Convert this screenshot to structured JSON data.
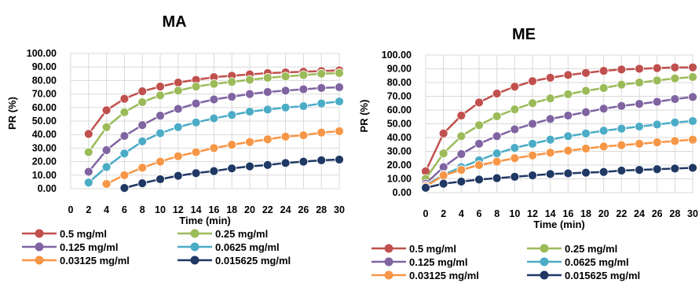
{
  "chart_data": [
    {
      "type": "line",
      "title": "MA",
      "xlabel": "Time (min)",
      "ylabel": "PR (%)",
      "xlim": [
        0,
        30
      ],
      "ylim": [
        0,
        100
      ],
      "x_ticks": [
        "0",
        "2",
        "4",
        "6",
        "8",
        "10",
        "12",
        "14",
        "16",
        "18",
        "20",
        "22",
        "24",
        "26",
        "28",
        "30"
      ],
      "y_ticks": [
        "0.00",
        "10.00",
        "20.00",
        "30.00",
        "40.00",
        "50.00",
        "60.00",
        "70.00",
        "80.00",
        "90.00",
        "100.00"
      ],
      "grid": true,
      "legend_position": "bottom",
      "series": [
        {
          "name": "0.5 mg/ml",
          "color": "#c0504d",
          "x": [
            2,
            4,
            6,
            8,
            10,
            12,
            14,
            16,
            18,
            20,
            22,
            24,
            26,
            28,
            30
          ],
          "y": [
            40.5,
            58,
            66.5,
            72,
            75.5,
            78.5,
            80.5,
            82.5,
            83.5,
            84.5,
            85.5,
            86,
            86.5,
            87,
            87.5
          ]
        },
        {
          "name": "0.25 mg/ml",
          "color": "#9bbb59",
          "x": [
            2,
            4,
            6,
            8,
            10,
            12,
            14,
            16,
            18,
            20,
            22,
            24,
            26,
            28,
            30
          ],
          "y": [
            27,
            45.5,
            56.5,
            64,
            69,
            72.5,
            75.5,
            77.5,
            79,
            80.5,
            82,
            83,
            84,
            85,
            85.5
          ]
        },
        {
          "name": "0.125 mg/ml",
          "color": "#8064a2",
          "x": [
            2,
            4,
            6,
            8,
            10,
            12,
            14,
            16,
            18,
            20,
            22,
            24,
            26,
            28,
            30
          ],
          "y": [
            12.5,
            28.5,
            39,
            47,
            54,
            59,
            63,
            66,
            68,
            70,
            71.5,
            72.5,
            73.5,
            74.5,
            75
          ]
        },
        {
          "name": "0.0625 mg/ml",
          "color": "#4bacc6",
          "x": [
            2,
            4,
            6,
            8,
            10,
            12,
            14,
            16,
            18,
            20,
            22,
            24,
            26,
            28,
            30
          ],
          "y": [
            4.5,
            16,
            26,
            35,
            41,
            45.5,
            49,
            52,
            54.5,
            57,
            58.5,
            60,
            61,
            63,
            64.5
          ]
        },
        {
          "name": "0.03125 mg/ml",
          "color": "#f79646",
          "x": [
            4,
            6,
            8,
            10,
            12,
            14,
            16,
            18,
            20,
            22,
            24,
            26,
            28,
            30
          ],
          "y": [
            3.5,
            10,
            15.5,
            20,
            24,
            27,
            30,
            32.5,
            34.5,
            36.5,
            38.5,
            39.5,
            41.5,
            42.5
          ]
        },
        {
          "name": "0.015625 mg/ml",
          "color": "#1f3864",
          "x": [
            6,
            8,
            10,
            12,
            14,
            16,
            18,
            20,
            22,
            24,
            26,
            28,
            30
          ],
          "y": [
            0.5,
            4,
            7,
            9.5,
            11.5,
            13,
            15,
            16.5,
            17.5,
            19,
            20,
            21,
            21.5
          ]
        }
      ]
    },
    {
      "type": "line",
      "title": "ME",
      "xlabel": "Time (min)",
      "ylabel": "PR (%)",
      "xlim": [
        0,
        30
      ],
      "ylim": [
        0,
        100
      ],
      "x_ticks": [
        "0",
        "2",
        "4",
        "6",
        "8",
        "10",
        "12",
        "14",
        "16",
        "18",
        "20",
        "22",
        "24",
        "26",
        "28",
        "30"
      ],
      "y_ticks": [
        "0.00",
        "10.00",
        "20.00",
        "30.00",
        "40.00",
        "50.00",
        "60.00",
        "70.00",
        "80.00",
        "90.00",
        "100.00"
      ],
      "grid": true,
      "legend_position": "bottom",
      "series": [
        {
          "name": "0.5 mg/ml",
          "color": "#c0504d",
          "x": [
            0,
            2,
            4,
            6,
            8,
            10,
            12,
            14,
            16,
            18,
            20,
            22,
            24,
            26,
            28,
            30
          ],
          "y": [
            15.5,
            43,
            56,
            65.5,
            72,
            77,
            81,
            83.5,
            85.5,
            87,
            88.5,
            89.5,
            90,
            90.5,
            91,
            91
          ]
        },
        {
          "name": "0.25 mg/ml",
          "color": "#9bbb59",
          "x": [
            0,
            2,
            4,
            6,
            8,
            10,
            12,
            14,
            16,
            18,
            20,
            22,
            24,
            26,
            28,
            30
          ],
          "y": [
            10,
            28.5,
            41,
            49,
            55.5,
            60.5,
            65,
            68.5,
            71.5,
            74,
            76,
            78.5,
            80,
            81.5,
            83,
            84
          ]
        },
        {
          "name": "0.125 mg/ml",
          "color": "#8064a2",
          "x": [
            0,
            2,
            4,
            6,
            8,
            10,
            12,
            14,
            16,
            18,
            20,
            22,
            24,
            26,
            28,
            30
          ],
          "y": [
            6.5,
            18.5,
            28,
            35.5,
            41,
            46,
            50,
            53.5,
            56,
            58.5,
            61,
            63,
            64.5,
            66,
            68,
            69.5
          ]
        },
        {
          "name": "0.0625 mg/ml",
          "color": "#4bacc6",
          "x": [
            0,
            2,
            4,
            6,
            8,
            10,
            12,
            14,
            16,
            18,
            20,
            22,
            24,
            26,
            28,
            30
          ],
          "y": [
            5,
            13,
            18.5,
            23.5,
            28.5,
            32.5,
            35.5,
            38.5,
            41,
            43,
            45,
            46.5,
            48,
            49.5,
            51,
            52
          ]
        },
        {
          "name": "0.03125 mg/ml",
          "color": "#f79646",
          "x": [
            0,
            2,
            4,
            6,
            8,
            10,
            12,
            14,
            16,
            18,
            20,
            22,
            24,
            26,
            28,
            30
          ],
          "y": [
            4.5,
            12.5,
            16.5,
            20,
            22.5,
            25,
            27,
            29,
            30.5,
            32,
            33.5,
            34.5,
            35.5,
            36.5,
            37.5,
            38.5
          ]
        },
        {
          "name": "0.015625 mg/ml",
          "color": "#1f3864",
          "x": [
            0,
            2,
            4,
            6,
            8,
            10,
            12,
            14,
            16,
            18,
            20,
            22,
            24,
            26,
            28,
            30
          ],
          "y": [
            3.5,
            6.5,
            8,
            9.5,
            10.5,
            11.5,
            12.5,
            13.5,
            14,
            14.5,
            15,
            16,
            16.5,
            17,
            17.5,
            18
          ]
        }
      ]
    }
  ]
}
